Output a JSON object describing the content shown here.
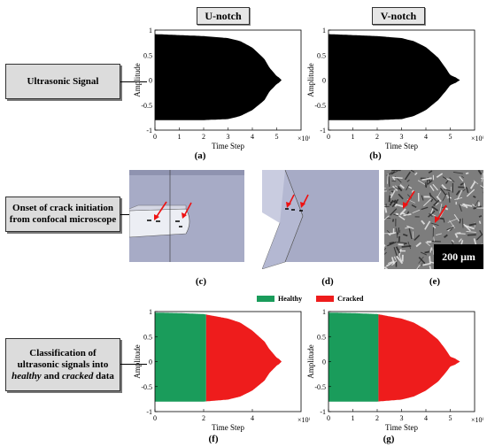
{
  "headers": {
    "u_notch": "U-notch",
    "v_notch": "V-notch"
  },
  "row_labels": {
    "signal": "Ultrasonic Signal",
    "crack_line1": "Onset of crack initiation",
    "crack_line2": "from confocal microscope",
    "class_line1": "Classification of",
    "class_line2": "ultrasonic signals into",
    "class_line3a": "healthy",
    "class_line3b": " and ",
    "class_line3c": "cracked",
    "class_line3d": " data"
  },
  "captions": {
    "a": "(a)",
    "b": "(b)",
    "c": "(c)",
    "d": "(d)",
    "e": "(e)",
    "f": "(f)",
    "g": "(g)"
  },
  "scale_bar": "200 μm",
  "legend": {
    "healthy": "Healthy",
    "cracked": "Cracked",
    "healthy_color": "#1a9c5b",
    "cracked_color": "#ee1c1c"
  },
  "chart_data": [
    {
      "id": "a",
      "type": "area",
      "xlabel": "Time Step",
      "ylabel": "Amplitude",
      "xlim": [
        0,
        6000000
      ],
      "ylim": [
        -1,
        1
      ],
      "xticks": [
        "0",
        "1",
        "2",
        "3",
        "4",
        "5"
      ],
      "x_multiplier": "×10⁶",
      "yticks": [
        "1",
        "0.5",
        "0",
        "-0.5",
        "-1"
      ],
      "envelope_x": [
        0,
        1,
        2,
        3,
        3.5,
        4,
        4.5,
        4.7,
        5,
        5.1,
        5.2
      ],
      "envelope_upper": [
        0.92,
        0.9,
        0.88,
        0.84,
        0.78,
        0.65,
        0.42,
        0.25,
        0.08,
        0.05,
        0
      ],
      "envelope_lower": [
        -0.8,
        -0.8,
        -0.8,
        -0.78,
        -0.72,
        -0.6,
        -0.4,
        -0.23,
        -0.08,
        -0.05,
        0
      ],
      "colors": [
        "#000000"
      ]
    },
    {
      "id": "b",
      "type": "area",
      "xlabel": "Time Step",
      "ylabel": "Amplitude",
      "xlim": [
        0,
        6000000
      ],
      "ylim": [
        -1,
        1
      ],
      "xticks": [
        "0",
        "1",
        "2",
        "3",
        "4",
        "5"
      ],
      "x_multiplier": "×10⁶",
      "yticks": [
        "1",
        "0.5",
        "0",
        "-0.5",
        "-1"
      ],
      "envelope_x": [
        0,
        1,
        2,
        3,
        3.5,
        4,
        4.5,
        4.8,
        5,
        5.2,
        5.4
      ],
      "envelope_upper": [
        0.92,
        0.9,
        0.88,
        0.84,
        0.78,
        0.66,
        0.45,
        0.25,
        0.1,
        0.06,
        0
      ],
      "envelope_lower": [
        -0.8,
        -0.8,
        -0.8,
        -0.78,
        -0.72,
        -0.6,
        -0.4,
        -0.23,
        -0.1,
        -0.06,
        0
      ],
      "colors": [
        "#000000"
      ]
    },
    {
      "id": "f",
      "type": "area",
      "xlabel": "Time Step",
      "ylabel": "Amplitude",
      "xlim": [
        0,
        6000000
      ],
      "ylim": [
        -1,
        1
      ],
      "xticks": [
        "0",
        "2",
        "4"
      ],
      "x_multiplier": "×10⁶",
      "yticks": [
        "1",
        "0.5",
        "0",
        "-0.5",
        "-1"
      ],
      "split_at": 2.1,
      "envelope_x": [
        0,
        1,
        2,
        3,
        3.5,
        4,
        4.5,
        4.7,
        5,
        5.1,
        5.2
      ],
      "envelope_upper": [
        0.98,
        0.97,
        0.95,
        0.86,
        0.78,
        0.62,
        0.4,
        0.25,
        0.08,
        0.05,
        0
      ],
      "envelope_lower": [
        -0.8,
        -0.8,
        -0.8,
        -0.76,
        -0.7,
        -0.58,
        -0.38,
        -0.23,
        -0.08,
        -0.05,
        0
      ],
      "colors": [
        "#1a9c5b",
        "#ee1c1c"
      ]
    },
    {
      "id": "g",
      "type": "area",
      "xlabel": "Time Step",
      "ylabel": "Amplitude",
      "xlim": [
        0,
        6000000
      ],
      "ylim": [
        -1,
        1
      ],
      "xticks": [
        "0",
        "1",
        "2",
        "3",
        "4",
        "5"
      ],
      "x_multiplier": "×10⁶",
      "yticks": [
        "1",
        "0.5",
        "0",
        "-0.5",
        "-1"
      ],
      "split_at": 2.05,
      "envelope_x": [
        0,
        1,
        2,
        3,
        3.5,
        4,
        4.5,
        4.8,
        5,
        5.2,
        5.4
      ],
      "envelope_upper": [
        0.98,
        0.97,
        0.95,
        0.86,
        0.78,
        0.64,
        0.44,
        0.25,
        0.1,
        0.06,
        0
      ],
      "envelope_lower": [
        -0.8,
        -0.8,
        -0.8,
        -0.76,
        -0.7,
        -0.58,
        -0.4,
        -0.23,
        -0.1,
        -0.06,
        0
      ],
      "colors": [
        "#1a9c5b",
        "#ee1c1c"
      ]
    }
  ]
}
